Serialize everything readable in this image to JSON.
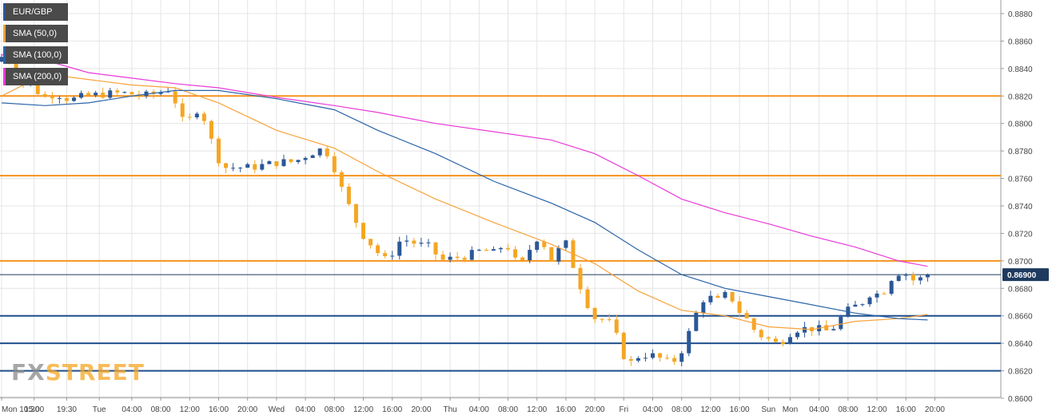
{
  "colors": {
    "up": "#2b5797",
    "down": "#f5a623",
    "sma50": "#f7a23a",
    "sma100": "#2a64a8",
    "sma200": "#e83ad8",
    "resistance": "#f5921e",
    "support": "#1f4e8c",
    "grid": "#e4e4e4",
    "price_tag_bg": "#1f3a5f"
  },
  "legend": {
    "symbol": "EUR/GBP",
    "sma50": "SMA (50,0)",
    "sma100": "SMA (100,0)",
    "sma200": "SMA (200,0)"
  },
  "logo": {
    "part1": "FX",
    "part2": "STREET"
  },
  "chart_data": {
    "type": "candlestick",
    "symbol": "EUR/GBP",
    "ylim": [
      0.86,
      0.889
    ],
    "y_ticks": [
      "0.8600",
      "0.8620",
      "0.8640",
      "0.8660",
      "0.8680",
      "0.8700",
      "0.8720",
      "0.8740",
      "0.8760",
      "0.8780",
      "0.8800",
      "0.8820",
      "0.8840",
      "0.8860",
      "0.8880"
    ],
    "x_labels": [
      {
        "label": "Mon 10:30",
        "t": 0
      },
      {
        "label": "15:00",
        "t": 4.5
      },
      {
        "label": "19:30",
        "t": 9
      },
      {
        "label": "Tue",
        "t": 13.5
      },
      {
        "label": "04:00",
        "t": 18
      },
      {
        "label": "08:00",
        "t": 22
      },
      {
        "label": "12:00",
        "t": 26
      },
      {
        "label": "16:00",
        "t": 30
      },
      {
        "label": "20:00",
        "t": 34
      },
      {
        "label": "Wed",
        "t": 38
      },
      {
        "label": "04:00",
        "t": 42
      },
      {
        "label": "08:00",
        "t": 46
      },
      {
        "label": "12:00",
        "t": 50
      },
      {
        "label": "16:00",
        "t": 54
      },
      {
        "label": "20:00",
        "t": 58
      },
      {
        "label": "Thu",
        "t": 62
      },
      {
        "label": "04:00",
        "t": 66
      },
      {
        "label": "08:00",
        "t": 70
      },
      {
        "label": "12:00",
        "t": 74
      },
      {
        "label": "16:00",
        "t": 78
      },
      {
        "label": "20:00",
        "t": 82
      },
      {
        "label": "Fri",
        "t": 86
      },
      {
        "label": "04:00",
        "t": 90
      },
      {
        "label": "08:00",
        "t": 94
      },
      {
        "label": "12:00",
        "t": 98
      },
      {
        "label": "16:00",
        "t": 102
      },
      {
        "label": "Sun",
        "t": 106
      },
      {
        "label": "Mon",
        "t": 109
      },
      {
        "label": "04:00",
        "t": 113
      },
      {
        "label": "08:00",
        "t": 117
      },
      {
        "label": "12:00",
        "t": 121
      },
      {
        "label": "16:00",
        "t": 125
      },
      {
        "label": "20:00",
        "t": 129
      }
    ],
    "current_price": "0.86900",
    "current_value": 0.869,
    "horizontal_levels": {
      "resistance": [
        0.882,
        0.8762,
        0.87
      ],
      "support": [
        0.866,
        0.864,
        0.862
      ]
    },
    "price_path": [
      [
        0,
        0.8845
      ],
      [
        1,
        0.8852
      ],
      [
        3,
        0.883
      ],
      [
        5,
        0.8828
      ],
      [
        6,
        0.8818
      ],
      [
        8,
        0.8822
      ],
      [
        10,
        0.8817
      ],
      [
        12,
        0.882
      ],
      [
        14,
        0.8821
      ],
      [
        16,
        0.8822
      ],
      [
        18,
        0.8822
      ],
      [
        20,
        0.882
      ],
      [
        22,
        0.8822
      ],
      [
        24,
        0.8826
      ],
      [
        25,
        0.8806
      ],
      [
        26,
        0.8798
      ],
      [
        27,
        0.8808
      ],
      [
        28,
        0.8812
      ],
      [
        29,
        0.8795
      ],
      [
        30,
        0.878
      ],
      [
        31,
        0.8768
      ],
      [
        33,
        0.8768
      ],
      [
        35,
        0.8768
      ],
      [
        37,
        0.877
      ],
      [
        39,
        0.8772
      ],
      [
        41,
        0.8772
      ],
      [
        43,
        0.8778
      ],
      [
        45,
        0.8782
      ],
      [
        46,
        0.8775
      ],
      [
        47,
        0.876
      ],
      [
        48,
        0.8745
      ],
      [
        49,
        0.8735
      ],
      [
        50,
        0.8722
      ],
      [
        51,
        0.8715
      ],
      [
        52,
        0.871
      ],
      [
        53,
        0.8702
      ],
      [
        54,
        0.87
      ],
      [
        55,
        0.8712
      ],
      [
        56,
        0.8716
      ],
      [
        58,
        0.8712
      ],
      [
        60,
        0.871
      ],
      [
        61,
        0.87
      ],
      [
        63,
        0.8702
      ],
      [
        65,
        0.8704
      ],
      [
        67,
        0.8708
      ],
      [
        69,
        0.8705
      ],
      [
        70,
        0.8715
      ],
      [
        71,
        0.8705
      ],
      [
        72,
        0.8695
      ],
      [
        73,
        0.8702
      ],
      [
        74,
        0.8715
      ],
      [
        75,
        0.8718
      ],
      [
        76,
        0.8705
      ],
      [
        77,
        0.8696
      ],
      [
        78,
        0.872
      ],
      [
        79,
        0.8705
      ],
      [
        80,
        0.8688
      ],
      [
        81,
        0.8675
      ],
      [
        82,
        0.8662
      ],
      [
        83,
        0.8655
      ],
      [
        84,
        0.866
      ],
      [
        85,
        0.865
      ],
      [
        86,
        0.864
      ],
      [
        87,
        0.8622
      ],
      [
        88,
        0.863
      ],
      [
        90,
        0.8632
      ],
      [
        92,
        0.8628
      ],
      [
        93,
        0.8625
      ],
      [
        94,
        0.863
      ],
      [
        95,
        0.864
      ],
      [
        96,
        0.8655
      ],
      [
        97,
        0.8668
      ],
      [
        98,
        0.8676
      ],
      [
        99,
        0.867
      ],
      [
        100,
        0.8672
      ],
      [
        101,
        0.8678
      ],
      [
        102,
        0.8666
      ],
      [
        103,
        0.866
      ],
      [
        104,
        0.8655
      ],
      [
        105,
        0.8645
      ],
      [
        106,
        0.8646
      ],
      [
        107,
        0.864
      ],
      [
        108,
        0.864
      ],
      [
        109,
        0.8645
      ],
      [
        110,
        0.865
      ],
      [
        112,
        0.8651
      ],
      [
        114,
        0.865
      ],
      [
        115,
        0.8648
      ],
      [
        116,
        0.8655
      ],
      [
        117,
        0.8662
      ],
      [
        118,
        0.8666
      ],
      [
        119,
        0.8668
      ],
      [
        120,
        0.8672
      ],
      [
        121,
        0.868
      ],
      [
        122,
        0.8672
      ],
      [
        123,
        0.8685
      ],
      [
        124,
        0.869
      ],
      [
        125,
        0.8693
      ],
      [
        126,
        0.8688
      ],
      [
        127,
        0.8684
      ],
      [
        128,
        0.869
      ]
    ],
    "sma_series": [
      {
        "name": "SMA (50,0)",
        "key": "sma50",
        "points": [
          [
            0,
            0.882
          ],
          [
            6,
            0.8836
          ],
          [
            12,
            0.8832
          ],
          [
            18,
            0.8828
          ],
          [
            24,
            0.8826
          ],
          [
            30,
            0.8815
          ],
          [
            38,
            0.8795
          ],
          [
            46,
            0.8782
          ],
          [
            52,
            0.8765
          ],
          [
            60,
            0.8745
          ],
          [
            68,
            0.8728
          ],
          [
            76,
            0.8712
          ],
          [
            82,
            0.8698
          ],
          [
            88,
            0.8678
          ],
          [
            94,
            0.8664
          ],
          [
            100,
            0.866
          ],
          [
            106,
            0.8652
          ],
          [
            112,
            0.865
          ],
          [
            118,
            0.8656
          ],
          [
            124,
            0.8658
          ],
          [
            128,
            0.8661
          ]
        ]
      },
      {
        "name": "SMA (100,0)",
        "key": "sma100",
        "points": [
          [
            0,
            0.8815
          ],
          [
            6,
            0.8813
          ],
          [
            12,
            0.8815
          ],
          [
            18,
            0.882
          ],
          [
            24,
            0.8824
          ],
          [
            30,
            0.8824
          ],
          [
            38,
            0.8818
          ],
          [
            46,
            0.881
          ],
          [
            52,
            0.8795
          ],
          [
            60,
            0.8778
          ],
          [
            68,
            0.8758
          ],
          [
            76,
            0.8742
          ],
          [
            82,
            0.8728
          ],
          [
            88,
            0.8708
          ],
          [
            94,
            0.869
          ],
          [
            100,
            0.868
          ],
          [
            106,
            0.8674
          ],
          [
            112,
            0.8668
          ],
          [
            118,
            0.8662
          ],
          [
            124,
            0.8658
          ],
          [
            128,
            0.8657
          ]
        ]
      },
      {
        "name": "SMA (200,0)",
        "key": "sma200",
        "points": [
          [
            0,
            0.885
          ],
          [
            6,
            0.8846
          ],
          [
            12,
            0.8837
          ],
          [
            18,
            0.8833
          ],
          [
            24,
            0.8829
          ],
          [
            30,
            0.8826
          ],
          [
            38,
            0.8819
          ],
          [
            46,
            0.8813
          ],
          [
            52,
            0.8808
          ],
          [
            60,
            0.88
          ],
          [
            68,
            0.8794
          ],
          [
            76,
            0.8788
          ],
          [
            82,
            0.8778
          ],
          [
            88,
            0.8762
          ],
          [
            94,
            0.8745
          ],
          [
            100,
            0.8735
          ],
          [
            106,
            0.8727
          ],
          [
            112,
            0.8718
          ],
          [
            118,
            0.871
          ],
          [
            124,
            0.87
          ],
          [
            128,
            0.8696
          ]
        ]
      }
    ]
  }
}
